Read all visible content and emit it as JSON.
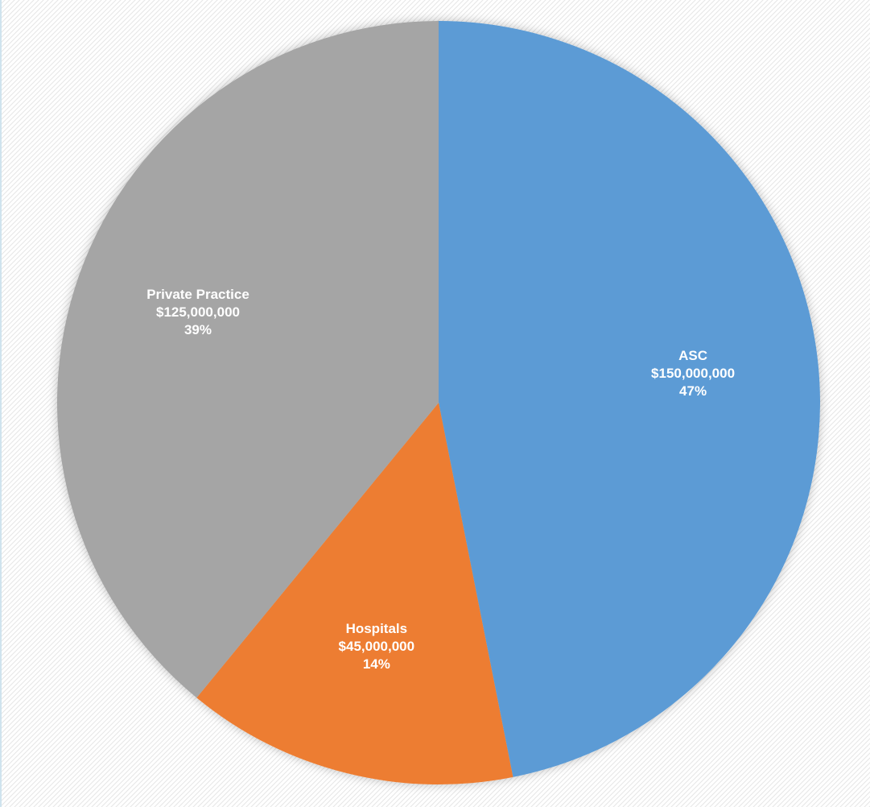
{
  "chart_data": {
    "type": "pie",
    "title": "",
    "categories": [
      "ASC",
      "Hospitals",
      "Private Practice"
    ],
    "values": [
      150000000,
      45000000,
      125000000
    ],
    "value_labels": [
      "$150,000,000",
      "$45,000,000",
      "$125,000,000"
    ],
    "percent_labels": [
      "47%",
      "14%",
      "39%"
    ],
    "colors": [
      "#5b9bd5",
      "#ed7d31",
      "#a5a5a5"
    ],
    "start_angle_deg": 0,
    "direction": "clockwise",
    "legend": "none",
    "background": "diagonal-hatch-light-gray"
  }
}
